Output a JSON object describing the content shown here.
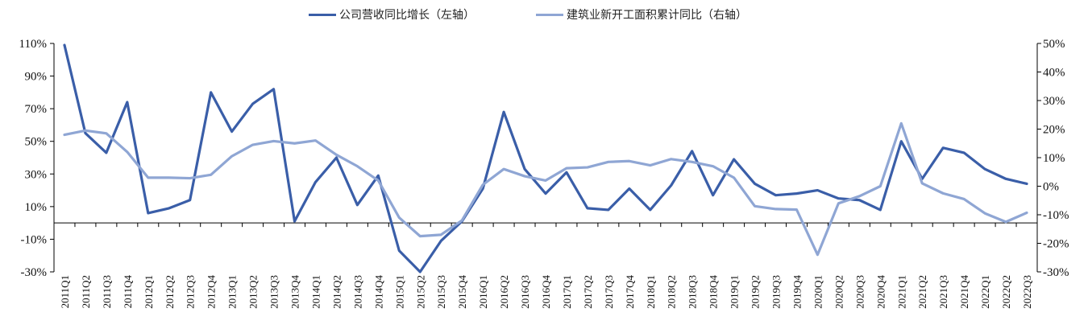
{
  "chart_data": {
    "type": "line",
    "title": "",
    "legend_position": "top-center",
    "grid": false,
    "categories": [
      "2011Q1",
      "2011Q2",
      "2011Q3",
      "2011Q4",
      "2012Q1",
      "2012Q2",
      "2012Q3",
      "2012Q4",
      "2013Q1",
      "2013Q2",
      "2013Q3",
      "2013Q4",
      "2014Q1",
      "2014Q2",
      "2014Q3",
      "2014Q4",
      "2015Q1",
      "2015Q2",
      "2015Q3",
      "2015Q4",
      "2016Q1",
      "2016Q2",
      "2016Q3",
      "2016Q4",
      "2017Q1",
      "2017Q2",
      "2017Q3",
      "2017Q4",
      "2018Q1",
      "2018Q2",
      "2018Q3",
      "2018Q4",
      "2019Q1",
      "2019Q2",
      "2019Q3",
      "2019Q4",
      "2020Q1",
      "2020Q2",
      "2020Q3",
      "2020Q4",
      "2021Q1",
      "2021Q2",
      "2021Q3",
      "2021Q4",
      "2022Q1",
      "2022Q2",
      "2022Q3"
    ],
    "y_left": {
      "min": -30,
      "max": 110,
      "ticks": [
        -30,
        -10,
        10,
        30,
        50,
        70,
        90,
        110
      ],
      "unit": "%"
    },
    "y_right": {
      "min": -30,
      "max": 50,
      "ticks": [
        -30,
        -20,
        -10,
        0,
        10,
        20,
        30,
        40,
        50
      ],
      "unit": "%"
    },
    "zero_line_axis": "right",
    "series": [
      {
        "name": "公司营收同比增长（左轴）",
        "axis": "left",
        "color": "#3a5ea8",
        "values": [
          109,
          55,
          43,
          74,
          6,
          9,
          14,
          80,
          56,
          73,
          82,
          1,
          25,
          40,
          11,
          29,
          -17,
          -30,
          -11,
          1,
          21,
          68,
          33,
          18,
          31,
          9,
          8,
          21,
          8,
          23,
          44,
          17,
          39,
          24,
          17,
          18,
          20,
          15,
          14,
          8,
          50,
          27,
          46,
          43,
          33,
          27,
          24
        ]
      },
      {
        "name": "建筑业新开工面积累计同比（右轴）",
        "axis": "right",
        "color": "#8fa6d4",
        "values": [
          18,
          19.5,
          18.5,
          12,
          3,
          3,
          2.8,
          4,
          10.5,
          14.5,
          15.8,
          15,
          16,
          11,
          7,
          2,
          -11,
          -17.5,
          -17,
          -12,
          0.5,
          6,
          3.5,
          2,
          6.3,
          6.6,
          8.5,
          8.8,
          7.3,
          9.5,
          8.5,
          7,
          3,
          -7,
          -8,
          -8.2,
          -24,
          -6,
          -3.5,
          0,
          22,
          1,
          -2.5,
          -4.5,
          -9.5,
          -12.5,
          -9.3
        ]
      }
    ]
  }
}
